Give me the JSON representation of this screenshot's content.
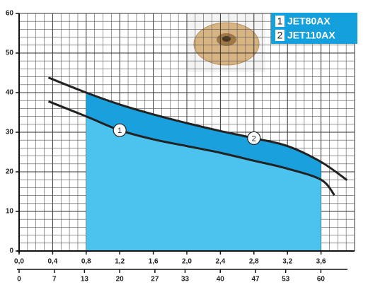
{
  "chart_data": {
    "type": "area-line",
    "xlim": [
      0,
      4.0
    ],
    "ylim": [
      0,
      60
    ],
    "xticks": [
      {
        "value": 0,
        "label": "0,0"
      },
      {
        "value": 0.4,
        "label": "0,4"
      },
      {
        "value": 0.8,
        "label": "0,8"
      },
      {
        "value": 1.2,
        "label": "1,2"
      },
      {
        "value": 1.6,
        "label": "1,6"
      },
      {
        "value": 2.0,
        "label": "2,0"
      },
      {
        "value": 2.4,
        "label": "2,4"
      },
      {
        "value": 2.8,
        "label": "2,8"
      },
      {
        "value": 3.2,
        "label": "3,2"
      },
      {
        "value": 3.6,
        "label": "3,6"
      }
    ],
    "x2lim": [
      0,
      66.7
    ],
    "x2ticks": [
      0,
      7,
      13,
      20,
      27,
      33,
      40,
      47,
      53,
      60
    ],
    "yticks": [
      0,
      10,
      20,
      30,
      40,
      50,
      60
    ],
    "grid": true,
    "fill_xlim": [
      0.8,
      3.6
    ],
    "fill_color": "#4cc3ee",
    "legend_color": "#14a0dd",
    "series": [
      {
        "name": "JET80AX",
        "marker": "1",
        "color": "#222222",
        "x": [
          0.35,
          0.8,
          1.2,
          1.6,
          2.0,
          2.4,
          2.8,
          3.2,
          3.6,
          3.76
        ],
        "values": [
          37.8,
          34,
          30.5,
          28.2,
          26.5,
          24.8,
          22.8,
          20.8,
          18,
          14.1
        ]
      },
      {
        "name": "JET110AX",
        "marker": "2",
        "color": "#222222",
        "fill": "#1aa0dc",
        "x": [
          0.35,
          0.8,
          1.2,
          1.6,
          2.0,
          2.4,
          2.8,
          3.2,
          3.6,
          3.91
        ],
        "values": [
          43.8,
          40,
          37,
          34.5,
          32.3,
          30.3,
          28.5,
          26.5,
          22.5,
          17.9
        ]
      }
    ]
  }
}
